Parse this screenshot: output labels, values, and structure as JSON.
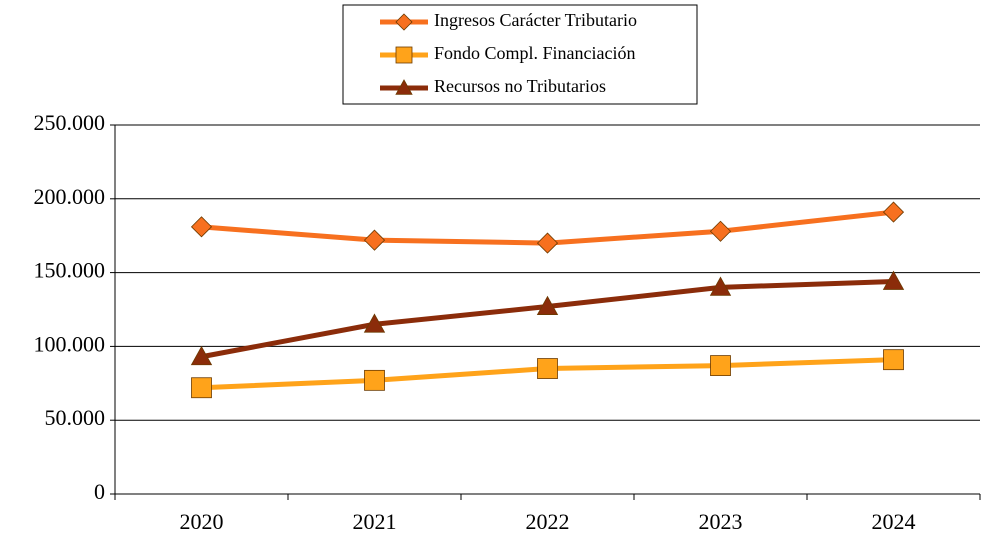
{
  "chart_data": {
    "type": "line",
    "categories": [
      "2020",
      "2021",
      "2022",
      "2023",
      "2024"
    ],
    "series": [
      {
        "name": "Ingresos Carácter Tributario",
        "color": "#f7701f",
        "marker": "diamond",
        "values": [
          181000,
          172000,
          170000,
          178000,
          191000
        ]
      },
      {
        "name": "Fondo Compl. Financiación",
        "color": "#ffa31a",
        "marker": "square",
        "values": [
          72000,
          77000,
          85000,
          87000,
          91000
        ]
      },
      {
        "name": "Recursos no Tributarios",
        "color": "#8b2c0a",
        "marker": "triangle",
        "values": [
          93000,
          115000,
          127000,
          140000,
          144000
        ]
      }
    ],
    "ylim": [
      0,
      250000
    ],
    "yticks": [
      0,
      {
        "value": 50000,
        "label": "50.000"
      },
      {
        "value": 100000,
        "label": "100.000"
      },
      {
        "value": 150000,
        "label": "150.000"
      },
      {
        "value": 200000,
        "label": "200.000"
      },
      {
        "value": 250000,
        "label": "250.000"
      }
    ],
    "grid": true,
    "legend": "top"
  }
}
